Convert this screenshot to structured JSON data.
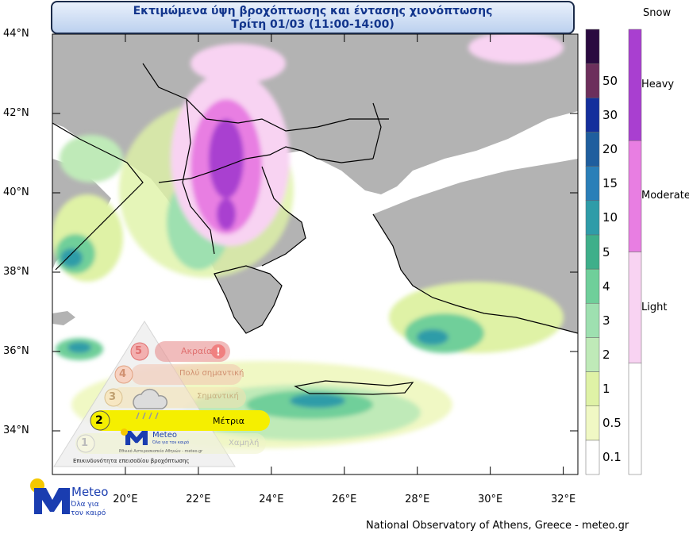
{
  "title": {
    "line1": "Εκτιμώμενα ύψη βροχόπτωσης και έντασης χιονόπτωσης",
    "line2": "Τρίτη 01/03 (11:00-14:00)"
  },
  "lat_labels": [
    {
      "label": "44°N",
      "lat": 44
    },
    {
      "label": "42°N",
      "lat": 42
    },
    {
      "label": "40°N",
      "lat": 40
    },
    {
      "label": "38°N",
      "lat": 38
    },
    {
      "label": "36°N",
      "lat": 36
    },
    {
      "label": "34°N",
      "lat": 34
    }
  ],
  "lon_labels": [
    {
      "label": "20°E",
      "lon": 20
    },
    {
      "label": "22°E",
      "lon": 22
    },
    {
      "label": "24°E",
      "lon": 24
    },
    {
      "label": "26°E",
      "lon": 26
    },
    {
      "label": "28°E",
      "lon": 28
    },
    {
      "label": "30°E",
      "lon": 30
    },
    {
      "label": "32°E",
      "lon": 32
    }
  ],
  "map_extent": {
    "lon_min": 18.0,
    "lon_max": 32.4,
    "lat_min": 32.9,
    "lat_max": 44.0
  },
  "rain_colorbar": {
    "levels": [
      "0.1",
      "0.5",
      "1",
      "2",
      "3",
      "4",
      "5",
      "10",
      "15",
      "20",
      "30",
      "50"
    ],
    "colors": [
      "#ffffff",
      "#f0f8c4",
      "#dff2a6",
      "#bfeab8",
      "#9ee0b0",
      "#6fcf9a",
      "#3eaf8a",
      "#2f9ca8",
      "#2a7fb8",
      "#1f5e9e",
      "#142f9c",
      "#6c2f5c",
      "#2a0a40"
    ]
  },
  "snow_colorbar": {
    "title": "Snow",
    "categories": [
      {
        "label": "Heavy",
        "color": "#a93fd0"
      },
      {
        "label": "Moderate",
        "color": "#e87ee2"
      },
      {
        "label": "Light",
        "color": "#f8d3f2"
      }
    ]
  },
  "warning_triangle": {
    "levels": [
      {
        "num": "5",
        "label": "Ακραία"
      },
      {
        "num": "4",
        "label": "Πολύ σημαντική"
      },
      {
        "num": "3",
        "label": "Σημαντική"
      },
      {
        "num": "2",
        "label": "Μέτρια"
      },
      {
        "num": "1",
        "label": "Χαμηλή"
      }
    ],
    "active_level": "2",
    "footer": "Επικινδυνότητα επεισοδίου βροχόπτωσης",
    "small_logo": "Meteo",
    "small_logo_sub": "Όλα για τον καιρό",
    "small_caption": "Εθνικό Αστεροσκοπείο Αθηνών - meteo.gr"
  },
  "logo": {
    "name": "Meteo",
    "tagline_1": "Όλα για",
    "tagline_2": "τον καιρό"
  },
  "credit": "National Observatory of Athens, Greece - meteo.gr",
  "colors": {
    "land": "#b3b3b3",
    "sea": "#ffffff",
    "title_text": "#12358c",
    "warning_yellow": "#f5ef00",
    "warning_red": "#e88f8f"
  }
}
